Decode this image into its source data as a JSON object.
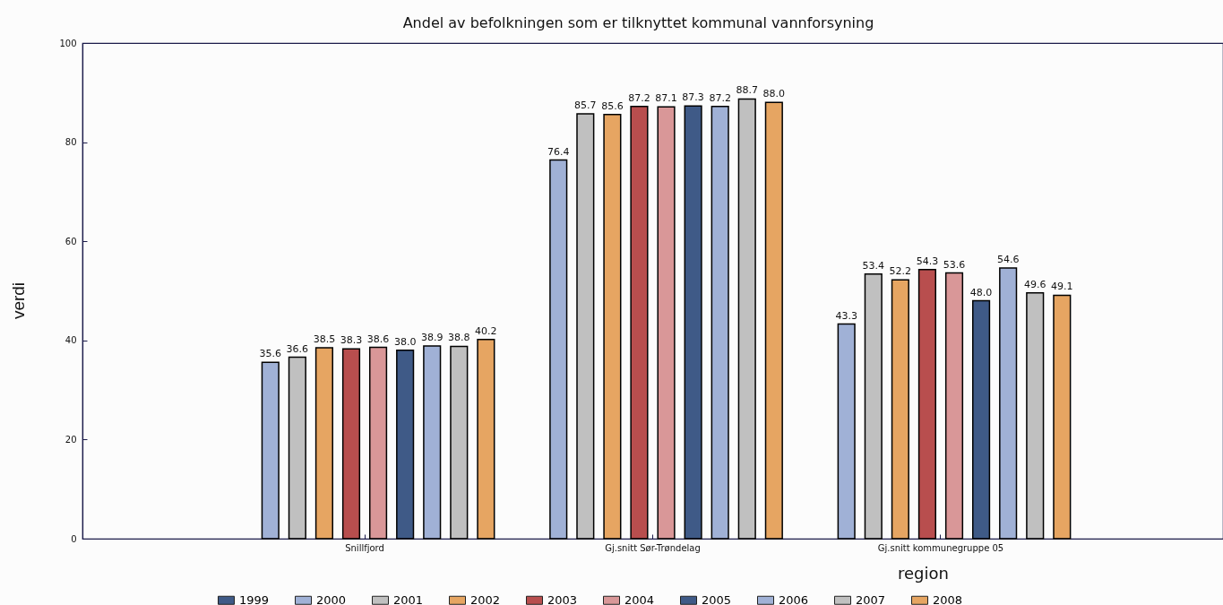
{
  "chart_data": {
    "type": "bar",
    "title": "Andel av befolkningen som er tilknyttet kommunal vannforsyning",
    "xlabel": "region",
    "ylabel": "verdi",
    "categories": [
      "Snillfjord",
      "Gj.snitt Sør-Trøndelag",
      "Gj.snitt kommunegruppe 05"
    ],
    "series": [
      {
        "name": "1999",
        "color": "#3f5a87",
        "values": [
          null,
          null,
          null
        ],
        "value_labels": [
          null,
          null,
          null
        ]
      },
      {
        "name": "2000",
        "color": "#a0b1d6",
        "values": [
          35.6,
          76.4,
          43.3
        ],
        "value_labels": [
          "35.6",
          "76.4",
          "43.3"
        ]
      },
      {
        "name": "2001",
        "color": "#c0c0c0",
        "values": [
          36.6,
          85.7,
          53.4
        ],
        "value_labels": [
          "36.6",
          "85.7",
          "53.4"
        ]
      },
      {
        "name": "2002",
        "color": "#e6a562",
        "values": [
          38.5,
          85.6,
          52.2
        ],
        "value_labels": [
          "38.5",
          "85.6",
          "52.2"
        ]
      },
      {
        "name": "2003",
        "color": "#b84e4e",
        "values": [
          38.3,
          87.2,
          54.3
        ],
        "value_labels": [
          "38.3",
          "87.2",
          "54.3"
        ]
      },
      {
        "name": "2004",
        "color": "#d99798",
        "values": [
          38.6,
          87.1,
          53.6
        ],
        "value_labels": [
          "38.6",
          "87.1",
          "53.6"
        ]
      },
      {
        "name": "2005",
        "color": "#3f5a87",
        "values": [
          38.0,
          87.3,
          48.0
        ],
        "value_labels": [
          "38.0",
          "87.3",
          "48.0"
        ]
      },
      {
        "name": "2006",
        "color": "#a0b1d6",
        "values": [
          38.9,
          87.2,
          54.6
        ],
        "value_labels": [
          "38.9",
          "87.2",
          "54.6"
        ]
      },
      {
        "name": "2007",
        "color": "#c0c0c0",
        "values": [
          38.8,
          88.7,
          49.6
        ],
        "value_labels": [
          "38.8",
          "88.7",
          "49.6"
        ]
      },
      {
        "name": "2008",
        "color": "#e6a562",
        "values": [
          40.2,
          88.0,
          49.1
        ],
        "value_labels": [
          "40.2",
          "88.0",
          "49.1"
        ]
      }
    ],
    "ylim": [
      0,
      100
    ],
    "yticks": [
      0,
      20,
      40,
      60,
      80,
      100
    ],
    "legend": "bottom"
  }
}
